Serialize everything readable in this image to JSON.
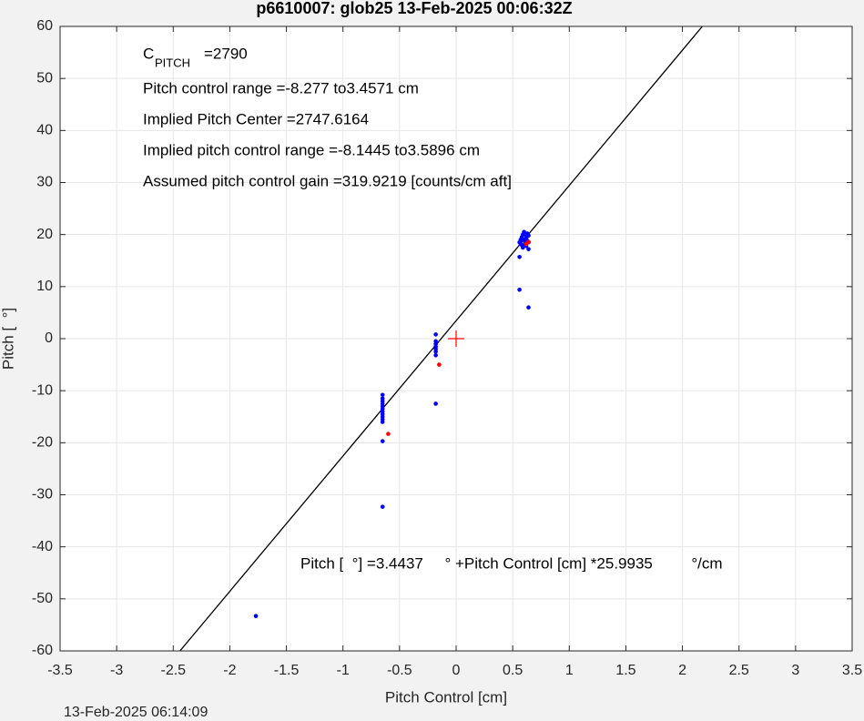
{
  "chart_data": {
    "type": "scatter",
    "title": "p6610007: glob25 13-Feb-2025 00:06:32Z",
    "x_label": "Pitch Control [cm]",
    "y_label": "Pitch [  °]",
    "footer": "13-Feb-2025 06:14:09",
    "cpitch": {
      "base": "C",
      "subscript": "PITCH",
      "rest": "=2790"
    },
    "annotations": [
      "Pitch control range =-8.277 to3.4571 cm",
      "Implied Pitch Center =2747.6164",
      "Implied pitch control range =-8.1445 to3.5896 cm",
      "Assumed pitch control gain =319.9219 [counts/cm aft]"
    ],
    "equation": "Pitch [  °] =3.4437     ° +Pitch Control [cm] *25.9935         °/cm",
    "xlim": [
      -3.5,
      3.5
    ],
    "ylim": [
      -60,
      60
    ],
    "xticks": [
      -3.5,
      -3,
      -2.5,
      -2,
      -1.5,
      -1,
      -0.5,
      0,
      0.5,
      1,
      1.5,
      2,
      2.5,
      3,
      3.5
    ],
    "yticks": [
      -60,
      -50,
      -40,
      -30,
      -20,
      -10,
      0,
      10,
      20,
      30,
      40,
      50,
      60
    ],
    "grid": true,
    "series": [
      {
        "color": "#0000ff",
        "marker": "dot",
        "x": [
          0.56,
          0.57,
          0.58,
          0.58,
          0.59,
          0.59,
          0.6,
          0.6,
          0.61,
          0.61,
          0.62,
          0.62,
          0.63,
          0.63,
          0.64,
          0.64,
          0.57,
          0.6,
          0.62,
          0.64,
          0.56,
          0.56,
          0.64,
          -0.65,
          -0.65,
          -0.65,
          -0.65,
          -0.65,
          -0.65,
          -0.65,
          -0.65,
          -0.65,
          -0.65,
          -0.65,
          -0.65,
          -0.65,
          -0.18,
          -0.18,
          -0.18,
          -0.18,
          -0.18,
          -0.18,
          -0.18,
          -0.18,
          -1.77
        ],
        "y": [
          18.5,
          19,
          19.5,
          18,
          20,
          17.5,
          20.5,
          19,
          18.5,
          20,
          19.5,
          17.8,
          20.2,
          18.8,
          19.8,
          17.2,
          18.2,
          17.9,
          19.2,
          18.5,
          15.7,
          9.4,
          6,
          -10.8,
          -11.5,
          -12,
          -12.5,
          -13,
          -13.5,
          -14,
          -14.5,
          -15,
          -15.5,
          -16,
          -19.7,
          -32.3,
          0.8,
          -0.5,
          -1,
          -1.5,
          -2,
          -2.5,
          -3.2,
          -12.5,
          -53.3
        ]
      },
      {
        "color": "#ff0000",
        "marker": "dot",
        "x": [
          0.62,
          0.64,
          -0.15,
          -0.6
        ],
        "y": [
          18.2,
          18.6,
          -5,
          -18.3
        ]
      },
      {
        "color": "#ff0000",
        "marker": "plus",
        "x": [
          0
        ],
        "y": [
          0
        ]
      }
    ],
    "fit_line": {
      "color": "#000000",
      "x": [
        -2.4406,
        2.1758
      ],
      "y": [
        -60,
        60
      ]
    }
  }
}
